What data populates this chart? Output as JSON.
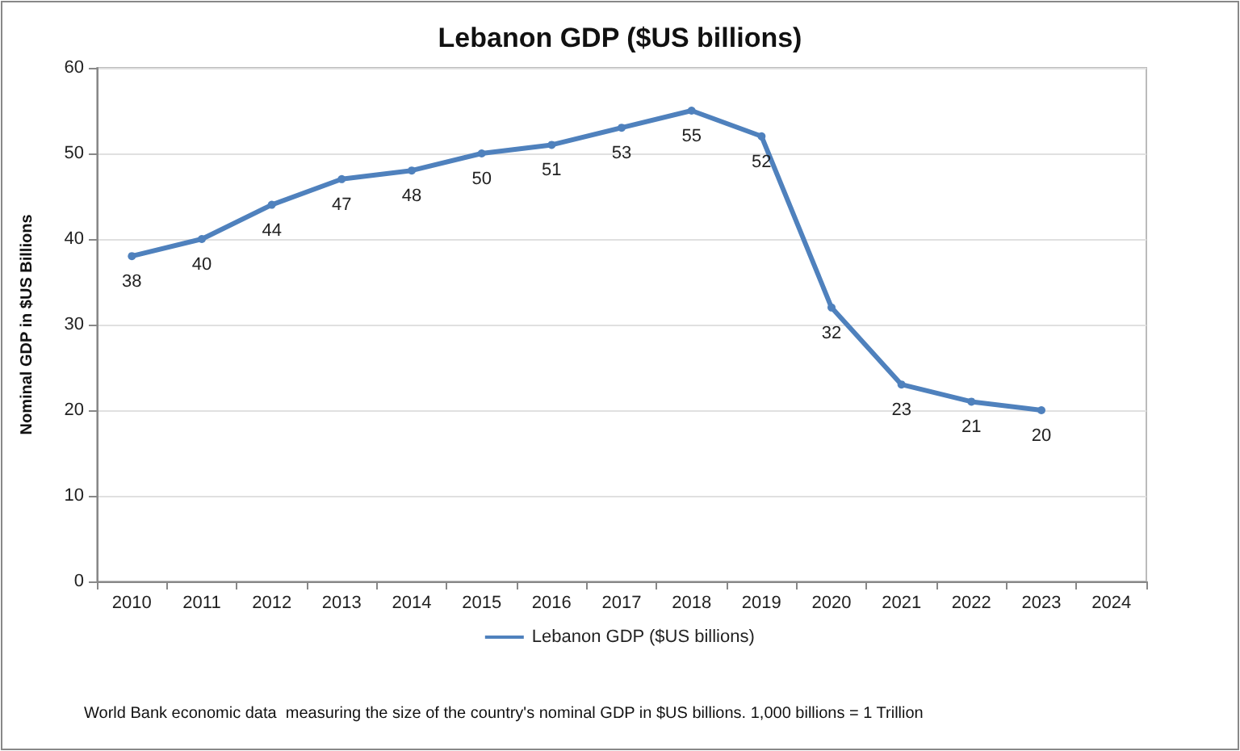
{
  "chart_data": {
    "type": "line",
    "title": "Lebanon GDP ($US billions)",
    "ylabel": "Nominal GDP in $US Billions",
    "categories": [
      "2010",
      "2011",
      "2012",
      "2013",
      "2014",
      "2015",
      "2016",
      "2017",
      "2018",
      "2019",
      "2020",
      "2021",
      "2022",
      "2023",
      "2024"
    ],
    "series": [
      {
        "name": "Lebanon GDP ($US billions)",
        "color": "#4f81bd",
        "values": [
          38,
          40,
          44,
          47,
          48,
          50,
          51,
          53,
          55,
          52,
          32,
          23,
          21,
          20,
          null
        ]
      }
    ],
    "ylim": [
      0,
      60
    ],
    "yticks": [
      0,
      10,
      20,
      30,
      40,
      50,
      60
    ],
    "grid": "y",
    "legend": "bottom",
    "marker": "circle",
    "line_style": "solid",
    "data_labels": true,
    "annotations": [
      "World Bank economic data  measuring the size of the country's nominal GDP in $US billions. 1,000 billions = 1 Trillion"
    ]
  }
}
